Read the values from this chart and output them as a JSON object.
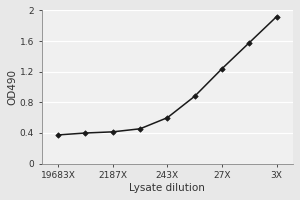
{
  "x_labels": [
    "19683X",
    "2187X",
    "243X",
    "27X",
    "3X"
  ],
  "x_positions": [
    0,
    1,
    2,
    3,
    4
  ],
  "x_data": [
    0,
    0.5,
    1,
    1.5,
    2,
    2.5,
    3,
    3.5,
    4
  ],
  "y_data": [
    0.375,
    0.4,
    0.415,
    0.455,
    0.6,
    0.88,
    1.24,
    1.58,
    1.92
  ],
  "xlabel": "Lysate dilution",
  "ylabel": "OD490",
  "ylim": [
    0,
    2.0
  ],
  "yticks": [
    0,
    0.4,
    0.8,
    1.2,
    1.6,
    2.0
  ],
  "ytick_labels": [
    "0",
    "0.4",
    "0.8",
    "1.2",
    "1.6",
    "2"
  ],
  "line_color": "#1a1a1a",
  "marker": "D",
  "marker_size": 2.8,
  "line_width": 1.1,
  "background_color": "#e8e8e8",
  "plot_bg_color": "#f0f0f0",
  "grid_color": "#ffffff",
  "tick_fontsize": 6.5,
  "label_fontsize": 7.5
}
